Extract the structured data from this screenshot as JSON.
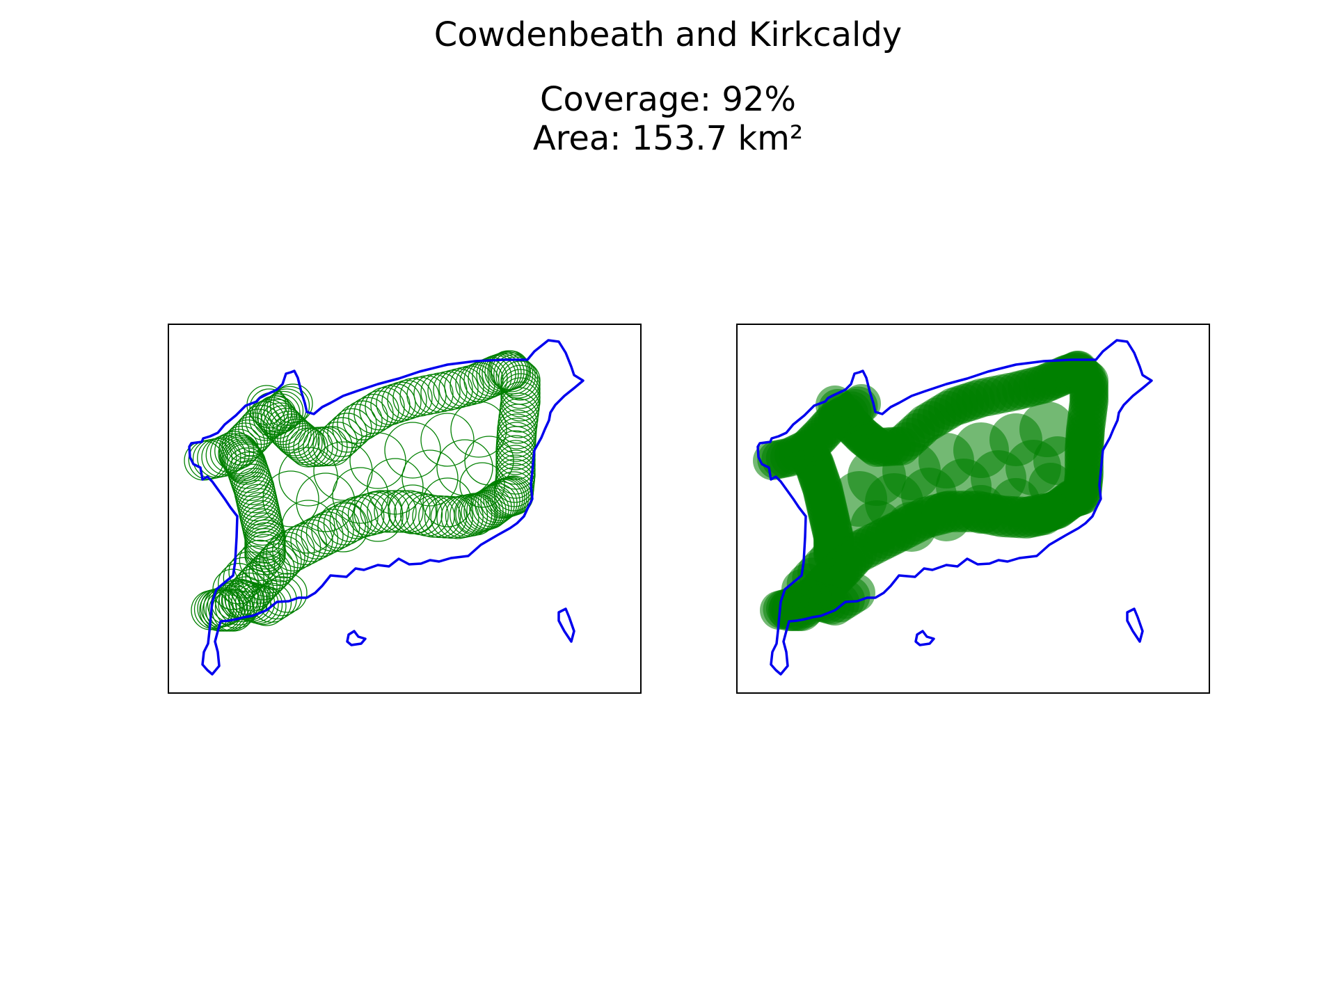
{
  "title": "Cowdenbeath and Kirkcaldy",
  "subtitle_coverage": "Coverage: 92%",
  "subtitle_area": "Area: 153.7 km²",
  "colors": {
    "boundary": "#0000ee",
    "circles": "#008000",
    "frame": "#000000"
  },
  "panels": [
    {
      "name": "circle outlines",
      "style": "outline"
    },
    {
      "name": "filled coverage",
      "style": "filled"
    }
  ]
}
